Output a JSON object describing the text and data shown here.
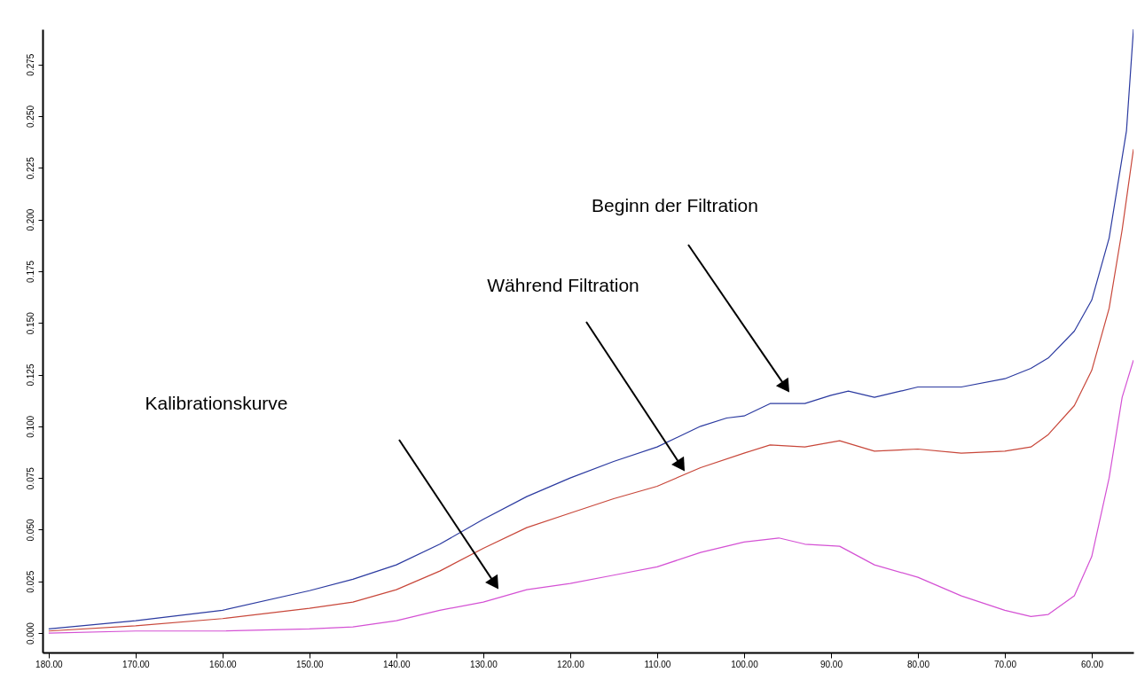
{
  "chart_data": {
    "type": "line",
    "xlim": [
      180.7,
      55.2
    ],
    "ylim": [
      -0.0094,
      0.292
    ],
    "xticks": [
      {
        "value": 180,
        "label": "180.00"
      },
      {
        "value": 170,
        "label": "170.00"
      },
      {
        "value": 160,
        "label": "160.00"
      },
      {
        "value": 150,
        "label": "150.00"
      },
      {
        "value": 140,
        "label": "140.00"
      },
      {
        "value": 130,
        "label": "130.00"
      },
      {
        "value": 120,
        "label": "120.00"
      },
      {
        "value": 110,
        "label": "110.00"
      },
      {
        "value": 100,
        "label": "100.00"
      },
      {
        "value": 90,
        "label": "90.00"
      },
      {
        "value": 80,
        "label": "80.00"
      },
      {
        "value": 70,
        "label": "70.00"
      },
      {
        "value": 60,
        "label": "60.00"
      }
    ],
    "yticks": [
      {
        "value": 0,
        "label": "0.000"
      },
      0.025,
      {
        "value": 0.05,
        "label": "0.050"
      },
      0.075,
      {
        "value": 0.1,
        "label": "0.100"
      },
      0.125,
      {
        "value": 0.15,
        "label": "0.150"
      },
      0.175,
      {
        "value": 0.2,
        "label": "0.200"
      },
      0.225,
      {
        "value": 0.25,
        "label": "0.250"
      },
      0.275
    ],
    "series": [
      {
        "color": "#2b3aa0",
        "x": [
          180,
          170,
          160,
          150,
          145,
          140,
          135,
          130,
          125,
          120,
          115,
          110,
          105,
          102,
          100,
          97,
          95,
          93,
          90,
          88,
          85,
          82,
          80,
          75,
          70,
          67,
          65,
          62,
          60,
          58,
          56,
          55.2
        ],
        "values": [
          0.002,
          0.006,
          0.011,
          0.0205,
          0.026,
          0.033,
          0.043,
          0.055,
          0.066,
          0.075,
          0.083,
          0.09,
          0.1,
          0.104,
          0.105,
          0.111,
          0.111,
          0.111,
          0.115,
          0.117,
          0.114,
          0.117,
          0.119,
          0.119,
          0.123,
          0.128,
          0.133,
          0.146,
          0.161,
          0.191,
          0.243,
          0.292
        ]
      },
      {
        "color": "#c8473a",
        "x": [
          180,
          170,
          160,
          150,
          145,
          140,
          135,
          130,
          125,
          120,
          115,
          110,
          105,
          100,
          97,
          93,
          89,
          85,
          80,
          75,
          70,
          67,
          65,
          62,
          60,
          58,
          56.5,
          55.2
        ],
        "values": [
          0.001,
          0.0035,
          0.007,
          0.012,
          0.015,
          0.021,
          0.03,
          0.041,
          0.051,
          0.058,
          0.065,
          0.071,
          0.08,
          0.087,
          0.091,
          0.09,
          0.093,
          0.088,
          0.089,
          0.087,
          0.088,
          0.09,
          0.096,
          0.11,
          0.127,
          0.157,
          0.195,
          0.234
        ]
      },
      {
        "color": "#d451d4",
        "x": [
          180,
          170,
          160,
          150,
          145,
          140,
          135,
          130,
          125,
          120,
          115,
          110,
          105,
          100,
          96,
          93,
          89,
          85,
          80,
          75,
          70,
          67,
          65,
          62,
          60,
          58,
          56.5,
          55.2
        ],
        "values": [
          0.0,
          0.001,
          0.001,
          0.002,
          0.003,
          0.006,
          0.011,
          0.015,
          0.021,
          0.024,
          0.028,
          0.032,
          0.039,
          0.044,
          0.046,
          0.043,
          0.042,
          0.033,
          0.027,
          0.018,
          0.011,
          0.008,
          0.009,
          0.018,
          0.037,
          0.075,
          0.114,
          0.132
        ]
      }
    ],
    "annotations": [
      "Beginn der Filtration",
      "Während Filtration",
      "Kalibrationskurve"
    ]
  }
}
